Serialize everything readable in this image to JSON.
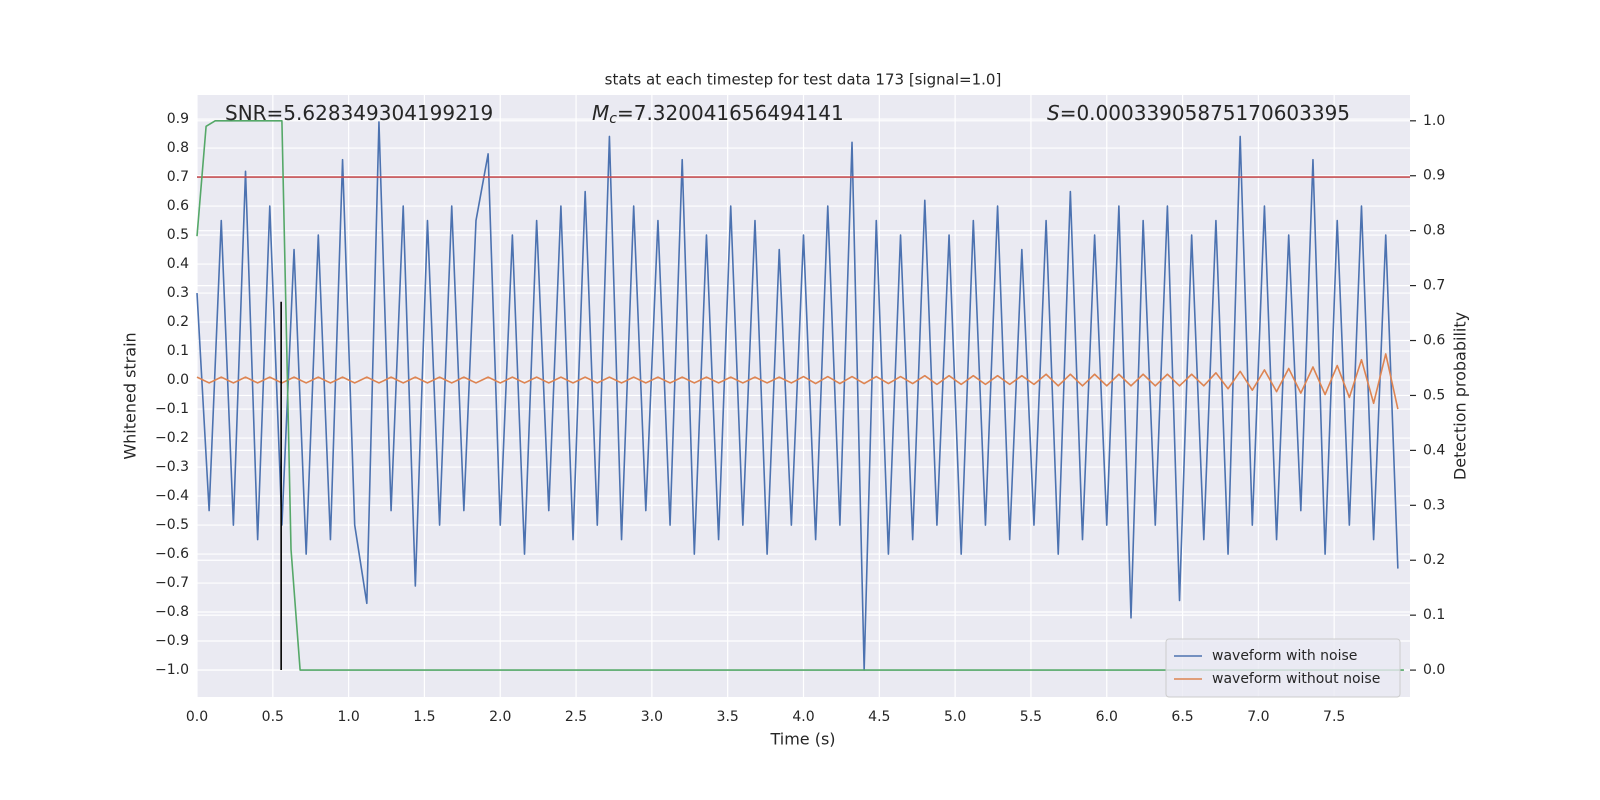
{
  "chart_data": {
    "type": "line",
    "title": "stats at each timestep for test data 173 [signal=1.0]",
    "xlabel": "Time (s)",
    "ylabel": "Whitened strain",
    "y2label": "Detection probability",
    "annotations": [
      {
        "text": "SNR=5.628349304199219"
      },
      {
        "italic": "M",
        "sub": "c",
        "text": "=7.320041656494141"
      },
      {
        "italic": "S",
        "text": "=0.00033905875170603395"
      }
    ],
    "xlim": [
      0,
      8
    ],
    "ylim": [
      -1.093,
      0.983
    ],
    "y2lim": [
      -0.049,
      1.047
    ],
    "xticks": [
      {
        "value": 0,
        "label": "0.0"
      },
      {
        "value": 0.5,
        "label": "0.5"
      },
      {
        "value": 1,
        "label": "1.0"
      },
      {
        "value": 1.5,
        "label": "1.5"
      },
      {
        "value": 2,
        "label": "2.0"
      },
      {
        "value": 2.5,
        "label": "2.5"
      },
      {
        "value": 3,
        "label": "3.0"
      },
      {
        "value": 3.5,
        "label": "3.5"
      },
      {
        "value": 4,
        "label": "4.0"
      },
      {
        "value": 4.5,
        "label": "4.5"
      },
      {
        "value": 5,
        "label": "5.0"
      },
      {
        "value": 5.5,
        "label": "5.5"
      },
      {
        "value": 6,
        "label": "6.0"
      },
      {
        "value": 6.5,
        "label": "6.5"
      },
      {
        "value": 7,
        "label": "7.0"
      },
      {
        "value": 7.5,
        "label": "7.5"
      }
    ],
    "yticks": [
      {
        "value": -1,
        "label": "−1.0"
      },
      {
        "value": -0.9,
        "label": "−0.9"
      },
      {
        "value": -0.8,
        "label": "−0.8"
      },
      {
        "value": -0.7,
        "label": "−0.7"
      },
      {
        "value": -0.6,
        "label": "−0.6"
      },
      {
        "value": -0.5,
        "label": "−0.5"
      },
      {
        "value": -0.4,
        "label": "−0.4"
      },
      {
        "value": -0.3,
        "label": "−0.3"
      },
      {
        "value": -0.2,
        "label": "−0.2"
      },
      {
        "value": -0.1,
        "label": "−0.1"
      },
      {
        "value": 0,
        "label": "0.0"
      },
      {
        "value": 0.1,
        "label": "0.1"
      },
      {
        "value": 0.2,
        "label": "0.2"
      },
      {
        "value": 0.3,
        "label": "0.3"
      },
      {
        "value": 0.4,
        "label": "0.4"
      },
      {
        "value": 0.5,
        "label": "0.5"
      },
      {
        "value": 0.6,
        "label": "0.6"
      },
      {
        "value": 0.7,
        "label": "0.7"
      },
      {
        "value": 0.8,
        "label": "0.8"
      },
      {
        "value": 0.9,
        "label": "0.9"
      }
    ],
    "y2ticks": [
      {
        "value": 0,
        "label": "0.0"
      },
      {
        "value": 0.1,
        "label": "0.1"
      },
      {
        "value": 0.2,
        "label": "0.2"
      },
      {
        "value": 0.3,
        "label": "0.3"
      },
      {
        "value": 0.4,
        "label": "0.4"
      },
      {
        "value": 0.5,
        "label": "0.5"
      },
      {
        "value": 0.6,
        "label": "0.6"
      },
      {
        "value": 0.7,
        "label": "0.7"
      },
      {
        "value": 0.8,
        "label": "0.8"
      },
      {
        "value": 0.9,
        "label": "0.9"
      },
      {
        "value": 1,
        "label": "1.0"
      }
    ],
    "grid": true,
    "legend": "lower right",
    "x": [
      0,
      0.08,
      0.16,
      0.24,
      0.32,
      0.4,
      0.48,
      0.56,
      0.64,
      0.72,
      0.8,
      0.88,
      0.96,
      1.04,
      1.12,
      1.2,
      1.28,
      1.36,
      1.44,
      1.52,
      1.6,
      1.68,
      1.76,
      1.84,
      1.92,
      2,
      2.08,
      2.16,
      2.24,
      2.32,
      2.4,
      2.48,
      2.56,
      2.64,
      2.72,
      2.8,
      2.88,
      2.96,
      3.04,
      3.12,
      3.2,
      3.28,
      3.36,
      3.44,
      3.52,
      3.6,
      3.68,
      3.76,
      3.84,
      3.92,
      4,
      4.08,
      4.16,
      4.24,
      4.32,
      4.4,
      4.48,
      4.56,
      4.64,
      4.72,
      4.8,
      4.88,
      4.96,
      5.04,
      5.12,
      5.2,
      5.28,
      5.36,
      5.44,
      5.52,
      5.6,
      5.68,
      5.76,
      5.84,
      5.92,
      6,
      6.08,
      6.16,
      6.24,
      6.32,
      6.4,
      6.48,
      6.56,
      6.64,
      6.72,
      6.8,
      6.88,
      6.96,
      7.04,
      7.12,
      7.2,
      7.28,
      7.36,
      7.44,
      7.52,
      7.6,
      7.68,
      7.76,
      7.84,
      7.92
    ],
    "series": [
      {
        "name": "waveform with noise",
        "color": "#4c72b0",
        "values": [
          0.3,
          -0.45,
          0.55,
          -0.5,
          0.72,
          -0.55,
          0.6,
          -0.5,
          0.45,
          -0.6,
          0.5,
          -0.55,
          0.76,
          -0.5,
          -0.77,
          0.89,
          -0.45,
          0.6,
          -0.71,
          0.55,
          -0.5,
          0.6,
          -0.45,
          0.55,
          0.78,
          -0.5,
          0.5,
          -0.6,
          0.55,
          -0.45,
          0.6,
          -0.55,
          0.65,
          -0.5,
          0.84,
          -0.55,
          0.6,
          -0.45,
          0.55,
          -0.5,
          0.76,
          -0.6,
          0.5,
          -0.55,
          0.6,
          -0.5,
          0.55,
          -0.6,
          0.45,
          -0.5,
          0.5,
          -0.55,
          0.6,
          -0.5,
          0.82,
          -1.0,
          0.55,
          -0.6,
          0.5,
          -0.55,
          0.62,
          -0.5,
          0.5,
          -0.6,
          0.55,
          -0.5,
          0.6,
          -0.55,
          0.45,
          -0.5,
          0.55,
          -0.6,
          0.65,
          -0.55,
          0.5,
          -0.5,
          0.6,
          -0.82,
          0.55,
          -0.5,
          0.6,
          -0.76,
          0.5,
          -0.55,
          0.55,
          -0.6,
          0.84,
          -0.5,
          0.6,
          -0.55,
          0.5,
          -0.45,
          0.76,
          -0.6,
          0.55,
          -0.5,
          0.6,
          -0.55,
          0.5,
          -0.65
        ]
      },
      {
        "name": "waveform without noise",
        "color": "#dd8452",
        "values": [
          0.01,
          -0.01,
          0.01,
          -0.01,
          0.01,
          -0.01,
          0.01,
          -0.01,
          0.01,
          -0.01,
          0.01,
          -0.01,
          0.01,
          -0.01,
          0.01,
          -0.01,
          0.01,
          -0.01,
          0.01,
          -0.01,
          0.01,
          -0.01,
          0.01,
          -0.01,
          0.01,
          -0.01,
          0.01,
          -0.01,
          0.01,
          -0.01,
          0.01,
          -0.01,
          0.01,
          -0.01,
          0.01,
          -0.01,
          0.01,
          -0.01,
          0.01,
          -0.01,
          0.01,
          -0.01,
          0.01,
          -0.01,
          0.01,
          -0.01,
          0.01,
          -0.01,
          0.01,
          -0.01,
          0.012,
          -0.012,
          0.012,
          -0.012,
          0.012,
          -0.012,
          0.012,
          -0.012,
          0.012,
          -0.012,
          0.015,
          -0.015,
          0.015,
          -0.015,
          0.015,
          -0.015,
          0.015,
          -0.015,
          0.015,
          -0.015,
          0.02,
          -0.02,
          0.02,
          -0.02,
          0.02,
          -0.02,
          0.02,
          -0.02,
          0.02,
          -0.02,
          0.02,
          -0.02,
          0.02,
          -0.02,
          0.025,
          -0.03,
          0.03,
          -0.035,
          0.035,
          -0.04,
          0.04,
          -0.045,
          0.045,
          -0.05,
          0.05,
          -0.06,
          0.07,
          -0.08,
          0.09,
          -0.1
        ]
      },
      {
        "color": "#c44e52",
        "x": [
          0,
          8
        ],
        "values": [
          0.7,
          0.7
        ]
      },
      {
        "color": "#000000",
        "x": [
          0.555,
          0.555
        ],
        "values": [
          -1.0,
          0.27
        ]
      },
      {
        "color": "#55a868",
        "axis": "y2",
        "x": [
          0,
          0.06,
          0.12,
          0.56,
          0.62,
          0.68,
          7.96
        ],
        "values": [
          0.79,
          0.99,
          1.0,
          1.0,
          0.22,
          0.0,
          0.0
        ]
      }
    ]
  }
}
